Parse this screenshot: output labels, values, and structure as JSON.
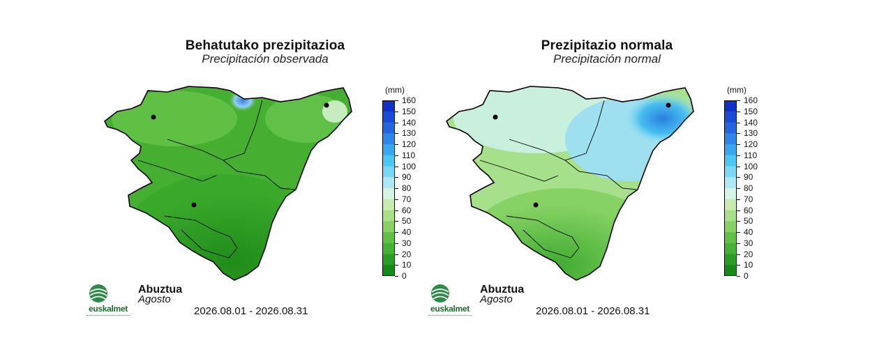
{
  "panels": [
    {
      "title": "Behatutako prezipitazioa",
      "subtitle": "Precipitación observada",
      "month": "Abuztua",
      "month_sub": "Agosto",
      "date_range": "2026.08.01 - 2026.08.31",
      "fill_colors": {
        "base": "#3aa82a",
        "light": "#5fc044",
        "south": "#1f8c1a",
        "highlight": "#3a7fe0"
      }
    },
    {
      "title": "Prezipitazio normala",
      "subtitle": "Precipitación normal",
      "month": "Abuztua",
      "month_sub": "Agosto",
      "date_range": "2026.08.01 - 2026.08.31",
      "fill_colors": {
        "base": "#a6e2a0",
        "light": "#c8f0e6",
        "south": "#4cb836",
        "highlight": "#2a9ee8"
      }
    }
  ],
  "legend": {
    "unit": "(mm)",
    "ticks": [
      "160",
      "150",
      "140",
      "130",
      "120",
      "110",
      "100",
      "90",
      "80",
      "70",
      "60",
      "50",
      "40",
      "30",
      "20",
      "10",
      "0"
    ],
    "colors": [
      "#1030c8",
      "#1a4ad8",
      "#2466e0",
      "#2e86e8",
      "#38a8ee",
      "#4cc6f2",
      "#7ad8f4",
      "#aee8f4",
      "#d6f4e6",
      "#c8ecb0",
      "#a8e088",
      "#86d264",
      "#62c246",
      "#44b234",
      "#2a9e24",
      "#168a18"
    ]
  },
  "logo": {
    "text": "euskalmet"
  }
}
